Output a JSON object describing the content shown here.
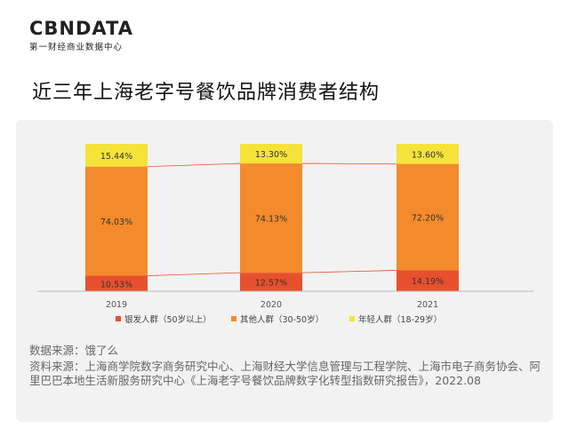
{
  "brand": {
    "logo_text": "CBNDATA",
    "logo_subtitle": "第一财经商业数据中心"
  },
  "page": {
    "title": "近三年上海老字号餐饮品牌消费者结构"
  },
  "notes": {
    "data_source": "数据来源：饿了么",
    "reference_source": "资料来源：上海商学院数字商务研究中心、上海财经大学信息管理与工程学院、上海市电子商务协会、阿里巴巴本地生活新服务研究中心《上海老字号餐饮品牌数字化转型指数研究报告》，2022.08"
  },
  "chart_data": {
    "type": "bar",
    "stacked": true,
    "categories": [
      "2019",
      "2020",
      "2021"
    ],
    "series": [
      {
        "name": "银发人群（50岁以上）",
        "color": "#e8502d",
        "values": [
          10.53,
          12.57,
          14.19
        ],
        "labels": [
          "10.53%",
          "12.57%",
          "14.19%"
        ]
      },
      {
        "name": "其他人群（30-50岁）",
        "color": "#f38a2c",
        "values": [
          74.03,
          74.13,
          72.2
        ],
        "labels": [
          "74.03%",
          "74.13%",
          "72.20%"
        ]
      },
      {
        "name": "年轻人群（18-29岁）",
        "color": "#f5e33a",
        "values": [
          15.44,
          13.3,
          13.6
        ],
        "labels": [
          "15.44%",
          "13.30%",
          "13.60%"
        ]
      }
    ],
    "ylim": [
      0,
      100
    ],
    "grid": false,
    "legend_position": "bottom",
    "connector_color": "#e8502d"
  }
}
